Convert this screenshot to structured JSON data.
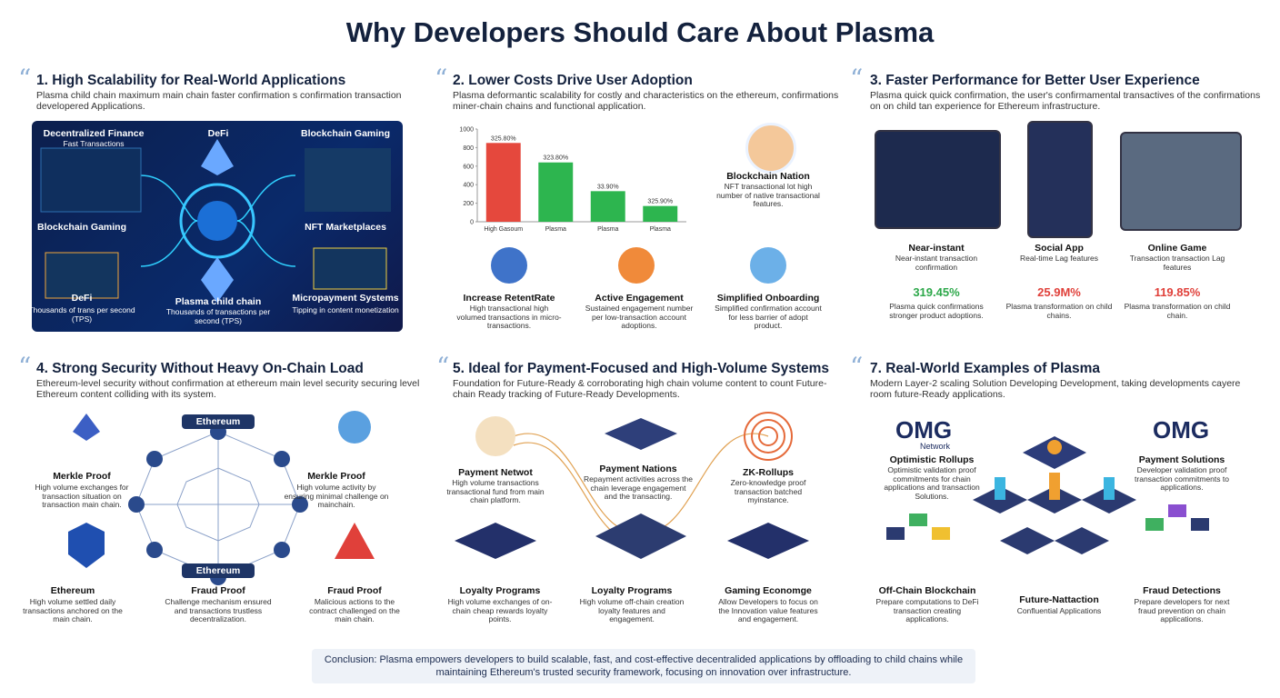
{
  "title": "Why Developers Should Care About Plasma",
  "sections": [
    {
      "title": "1. High Scalability for Real-World Applications",
      "description": "Plasma child chain maximum main chain faster confirmation s confirmation transaction developered Applications.",
      "items": [
        {
          "label": "Decentralized Finance",
          "text": "Fast Transactions"
        },
        {
          "label": "DeFi",
          "text": ""
        },
        {
          "label": "Blockchain Gaming",
          "text": ""
        },
        {
          "label": "Blockchain Gaming",
          "text": ""
        },
        {
          "label": "NFT Marketplaces",
          "text": ""
        },
        {
          "label": "DeFi",
          "text": "Thousands of trans per second (TPS)"
        },
        {
          "label": "Plasma child chain",
          "text": "Thousands of transactions per second (TPS)"
        },
        {
          "label": "Micropayment Systems",
          "text": "Tipping in content monetization"
        }
      ]
    },
    {
      "title": "2. Lower Costs Drive User Adoption",
      "description": "Plasma deformantic scalability for costly and characteristics on the ethereum, confirmations miner-chain chains and functional application.",
      "items": [
        {
          "label": "Blockchain Nation",
          "text": "NFT transactional lot high number of native transactional features."
        },
        {
          "label": "Increase RetentRate",
          "text": "High transactional high volumed transactions in micro-transactions."
        },
        {
          "label": "Active Engagement",
          "text": "Sustained engagement number per low-transaction account adoptions."
        },
        {
          "label": "Simplified Onboarding",
          "text": "Simplified confirmation account for less barrier of adopt product."
        }
      ]
    },
    {
      "title": "3. Faster Performance for Better User Experience",
      "description": "Plasma quick quick confirmation, the user's confirmamental transactives of the confirmations on on child tan experience for Ethereum infrastructure.",
      "items": [
        {
          "label": "Near-instant",
          "text": "Near-instant transaction confirmation",
          "stat": "319.45%",
          "note": "Plasma quick confirmations stronger product adoptions."
        },
        {
          "label": "Social App",
          "text": "Real-time Lag features",
          "stat": "25.9M%",
          "note": "Plasma transformation on child chains."
        },
        {
          "label": "Online Game",
          "text": "Transaction transaction Lag features",
          "stat": "119.85%",
          "note": "Plasma transformation on child chain."
        }
      ]
    },
    {
      "title": "4. Strong Security Without Heavy On-Chain Load",
      "description": "Ethereum-level security without confirmation at ethereum main level security securing level Ethereum content colliding with its system.",
      "items": [
        {
          "label": "Ethereum",
          "text": ""
        },
        {
          "label": "Merkle Proof",
          "text": "High volume exchanges for transaction situation on transaction main chain."
        },
        {
          "label": "Merkle Proof",
          "text": "High volume activity by ensuring minimal challenge on mainchain."
        },
        {
          "label": "Ethereum",
          "text": ""
        },
        {
          "label": "Ethereum",
          "text": "High volume settled daily transactions anchored on the main chain."
        },
        {
          "label": "Fraud Proof",
          "text": "Challenge mechanism ensured and transactions trustless decentralization."
        },
        {
          "label": "Fraud Proof",
          "text": "Malicious actions to the contract challenged on the main chain."
        }
      ]
    },
    {
      "title": "5. Ideal for Payment-Focused and High-Volume Systems",
      "description": "Foundation for Future-Ready & corroborating high chain volume content to count Future-chain Ready tracking of Future-Ready Developments.",
      "items": [
        {
          "label": "Payment Netwot",
          "text": "High volume transactions transactional fund from main chain platform."
        },
        {
          "label": "Payment Nations",
          "text": "Repayment activities across the chain leverage engagement and the transacting."
        },
        {
          "label": "ZK-Rollups",
          "text": "Zero-knowledge proof transaction batched myinstance."
        },
        {
          "label": "Loyalty Programs",
          "text": "High volume exchanges of on-chain cheap rewards loyalty points."
        },
        {
          "label": "Loyalty Programs",
          "text": "High volume off-chain creation loyalty features and engagement."
        },
        {
          "label": "Gaming Economge",
          "text": "Allow Developers to focus on the Innovation value features and engagement."
        }
      ]
    },
    {
      "title": "7. Real-World Examples of Plasma",
      "description": "Modern Layer-2 scaling Solution Developing Development, taking developments cayere room future-Ready applications.",
      "items": [
        {
          "label": "OMG",
          "text": "Network"
        },
        {
          "label": "Optimistic Rollups",
          "text": "Optimistic validation proof commitments for chain applications and transaction Solutions."
        },
        {
          "label": "OMG",
          "text": ""
        },
        {
          "label": "Payment Solutions",
          "text": "Developer validation proof transaction commitments to applications."
        },
        {
          "label": "Off-Chain Blockchain",
          "text": "Prepare computations to DeFi transaction creating applications."
        },
        {
          "label": "Future-Nattaction",
          "text": "Confluential Applications"
        },
        {
          "label": "Fraud Detections",
          "text": "Prepare developers for next fraud prevention on chain applications."
        }
      ]
    }
  ],
  "chart_data": {
    "type": "bar",
    "categories": [
      "High Gasoum",
      "Plasma",
      "Plasma",
      "Plasma"
    ],
    "values": [
      850,
      640,
      330,
      170
    ],
    "colors": [
      "#e5483d",
      "#2db54f",
      "#2db54f",
      "#2db54f"
    ],
    "annotations": [
      "325.80%",
      "323.80%",
      "33.90%",
      "325.90%"
    ],
    "ylim": [
      0,
      1000
    ],
    "yticks": [
      0,
      200,
      400,
      600,
      800,
      1000
    ]
  },
  "conclusion": "Conclusion: Plasma empowers developers to build scalable, fast, and cost-effective decentralided applications by offloading to child chains while maintaining Ethereum's trusted security framework, focusing on innovation over infrastructure."
}
